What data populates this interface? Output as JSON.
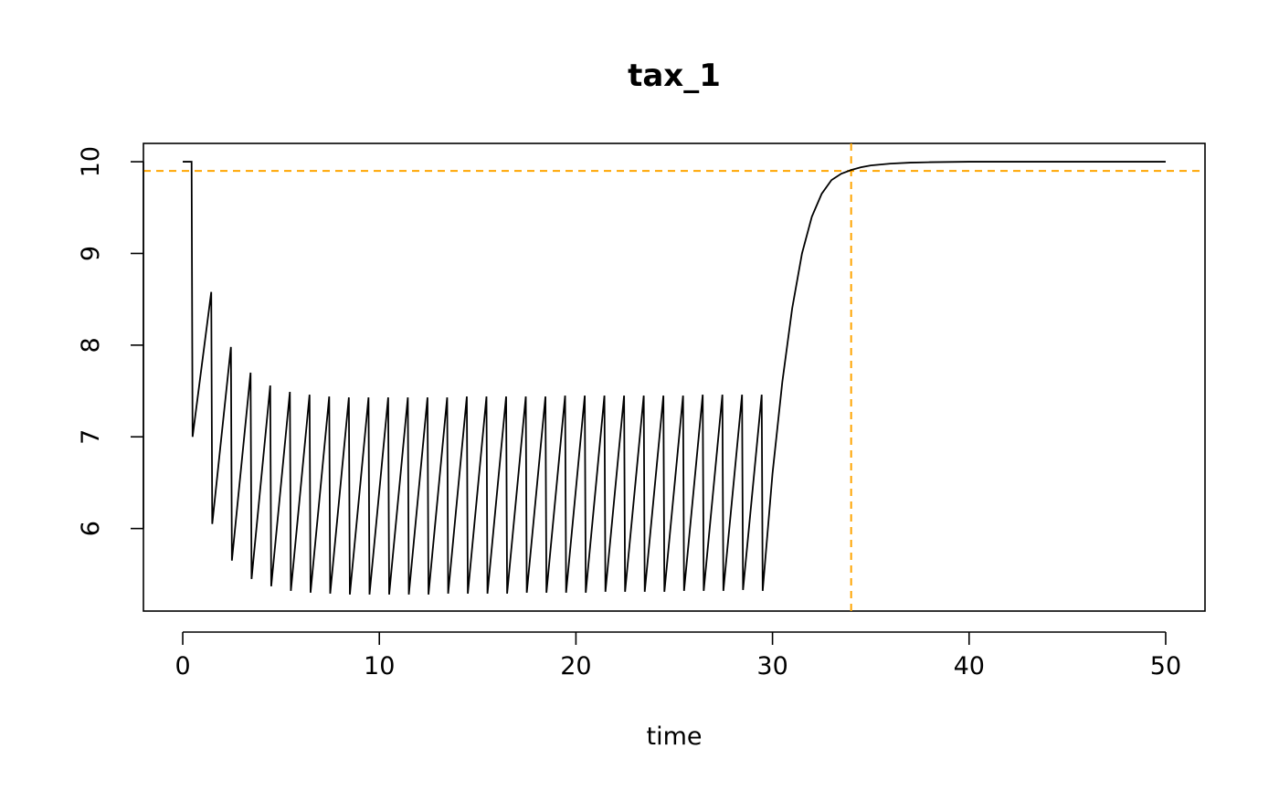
{
  "chart_data": {
    "type": "line",
    "title": "tax_1",
    "xlabel": "time",
    "ylabel": "",
    "xlim": [
      -2,
      52
    ],
    "ylim": [
      5.1,
      10.2
    ],
    "x_ticks": [
      0,
      10,
      20,
      30,
      40,
      50
    ],
    "y_ticks": [
      6,
      7,
      8,
      9,
      10
    ],
    "grid": false,
    "legend": "none",
    "ref_lines": {
      "color": "#FFA500",
      "vertical_x": 34,
      "horizontal_y": 9.9
    },
    "series": [
      {
        "color": "#000000",
        "x": [
          0,
          0.45,
          0.45,
          0.5,
          1.45,
          1.45,
          1.5,
          2.45,
          2.45,
          2.5,
          3.45,
          3.45,
          3.5,
          4.45,
          4.45,
          4.5,
          5.45,
          5.45,
          5.5,
          6.45,
          6.45,
          6.5,
          7.45,
          7.45,
          7.5,
          8.45,
          8.45,
          8.5,
          9.45,
          9.45,
          9.5,
          10.45,
          10.45,
          10.5,
          11.45,
          11.45,
          11.5,
          12.45,
          12.45,
          12.5,
          13.45,
          13.45,
          13.5,
          14.45,
          14.45,
          14.5,
          15.45,
          15.45,
          15.5,
          16.45,
          16.45,
          16.5,
          17.45,
          17.45,
          17.5,
          18.45,
          18.45,
          18.5,
          19.45,
          19.45,
          19.5,
          20.45,
          20.45,
          20.5,
          21.45,
          21.45,
          21.5,
          22.45,
          22.45,
          22.5,
          23.45,
          23.45,
          23.5,
          24.45,
          24.45,
          24.5,
          25.45,
          25.45,
          25.5,
          26.45,
          26.45,
          26.5,
          27.45,
          27.45,
          27.5,
          28.45,
          28.45,
          28.5,
          29.45,
          29.45,
          29.5,
          30,
          30.5,
          31,
          31.5,
          32,
          32.5,
          33,
          33.5,
          34,
          34.5,
          35,
          36,
          37,
          38,
          40,
          45,
          50
        ],
        "y": [
          10,
          10,
          10,
          7,
          8.58,
          8.58,
          6.05,
          7.98,
          7.98,
          5.65,
          7.7,
          7.7,
          5.45,
          7.56,
          7.56,
          5.37,
          7.49,
          7.49,
          5.32,
          7.46,
          7.46,
          5.3,
          7.44,
          7.44,
          5.29,
          7.43,
          7.43,
          5.28,
          7.43,
          7.43,
          5.28,
          7.43,
          7.43,
          5.28,
          7.43,
          7.43,
          5.28,
          7.43,
          7.43,
          5.28,
          7.43,
          7.43,
          5.29,
          7.44,
          7.44,
          5.29,
          7.44,
          7.44,
          5.29,
          7.44,
          7.44,
          5.29,
          7.44,
          7.44,
          5.3,
          7.44,
          7.44,
          5.3,
          7.45,
          7.45,
          5.3,
          7.45,
          7.45,
          5.3,
          7.45,
          7.45,
          5.31,
          7.45,
          7.45,
          5.31,
          7.45,
          7.45,
          5.31,
          7.45,
          7.45,
          5.31,
          7.45,
          7.45,
          5.32,
          7.46,
          7.46,
          5.32,
          7.46,
          7.46,
          5.32,
          7.46,
          7.46,
          5.33,
          7.46,
          7.46,
          5.32,
          6.6,
          7.6,
          8.4,
          9.0,
          9.4,
          9.65,
          9.8,
          9.87,
          9.91,
          9.94,
          9.96,
          9.98,
          9.99,
          9.995,
          10,
          10,
          10
        ]
      }
    ]
  }
}
